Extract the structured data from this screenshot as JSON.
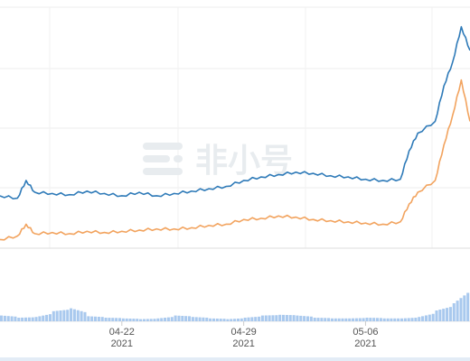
{
  "chart_data": [
    {
      "type": "line",
      "x_range": [
        "2021-04-15",
        "2021-05-12"
      ],
      "series": [
        {
          "color": "#2e7ab8",
          "points": [
            [
              "2021-04-15",
              0.42
            ],
            [
              "2021-04-16",
              0.4
            ],
            [
              "2021-04-16T12:00",
              0.55
            ],
            [
              "2021-04-17",
              0.45
            ],
            [
              "2021-04-18",
              0.44
            ],
            [
              "2021-04-19",
              0.43
            ],
            [
              "2021-04-20",
              0.46
            ],
            [
              "2021-04-21",
              0.44
            ],
            [
              "2021-04-22",
              0.42
            ],
            [
              "2021-04-23",
              0.45
            ],
            [
              "2021-04-24",
              0.42
            ],
            [
              "2021-04-25",
              0.44
            ],
            [
              "2021-04-26",
              0.46
            ],
            [
              "2021-04-27",
              0.48
            ],
            [
              "2021-04-28",
              0.5
            ],
            [
              "2021-04-29",
              0.55
            ],
            [
              "2021-04-30",
              0.58
            ],
            [
              "2021-05-01",
              0.6
            ],
            [
              "2021-05-02",
              0.62
            ],
            [
              "2021-05-03",
              0.61
            ],
            [
              "2021-05-04",
              0.59
            ],
            [
              "2021-05-05",
              0.58
            ],
            [
              "2021-05-06",
              0.56
            ],
            [
              "2021-05-07",
              0.55
            ],
            [
              "2021-05-08",
              0.56
            ],
            [
              "2021-05-08T12:00",
              0.8
            ],
            [
              "2021-05-09",
              0.95
            ],
            [
              "2021-05-10",
              1.05
            ],
            [
              "2021-05-10T12:00",
              1.35
            ],
            [
              "2021-05-11",
              1.55
            ],
            [
              "2021-05-11T12:00",
              1.85
            ],
            [
              "2021-05-12",
              1.65
            ]
          ]
        },
        {
          "color": "#f2a35e",
          "points": [
            [
              "2021-04-15",
              0.05
            ],
            [
              "2021-04-16",
              0.08
            ],
            [
              "2021-04-16T12:00",
              0.18
            ],
            [
              "2021-04-17",
              0.1
            ],
            [
              "2021-04-18",
              0.11
            ],
            [
              "2021-04-19",
              0.1
            ],
            [
              "2021-04-20",
              0.12
            ],
            [
              "2021-04-21",
              0.11
            ],
            [
              "2021-04-22",
              0.12
            ],
            [
              "2021-04-23",
              0.13
            ],
            [
              "2021-04-24",
              0.14
            ],
            [
              "2021-04-25",
              0.14
            ],
            [
              "2021-04-26",
              0.15
            ],
            [
              "2021-04-27",
              0.17
            ],
            [
              "2021-04-28",
              0.18
            ],
            [
              "2021-04-29",
              0.22
            ],
            [
              "2021-04-30",
              0.23
            ],
            [
              "2021-05-01",
              0.25
            ],
            [
              "2021-05-02",
              0.24
            ],
            [
              "2021-05-03",
              0.22
            ],
            [
              "2021-05-04",
              0.21
            ],
            [
              "2021-05-05",
              0.2
            ],
            [
              "2021-05-06",
              0.19
            ],
            [
              "2021-05-07",
              0.18
            ],
            [
              "2021-05-08",
              0.2
            ],
            [
              "2021-05-08T12:00",
              0.35
            ],
            [
              "2021-05-09",
              0.45
            ],
            [
              "2021-05-10",
              0.55
            ],
            [
              "2021-05-10T12:00",
              0.85
            ],
            [
              "2021-05-11",
              1.1
            ],
            [
              "2021-05-11T12:00",
              1.4
            ],
            [
              "2021-05-12",
              1.05
            ]
          ]
        }
      ],
      "x_tick_labels": [
        {
          "x": "2021-04-22",
          "line1": "04-22",
          "line2": "2021"
        },
        {
          "x": "2021-04-29",
          "line1": "04-29",
          "line2": "2021"
        },
        {
          "x": "2021-05-06",
          "line1": "05-06",
          "line2": "2021"
        }
      ],
      "grid": true,
      "watermark": "非小号"
    },
    {
      "type": "bar",
      "color": "#a9c9ee",
      "x": [
        "2021-04-15",
        "2021-04-16",
        "2021-04-17",
        "2021-04-18",
        "2021-04-19",
        "2021-04-20",
        "2021-04-21",
        "2021-04-22",
        "2021-04-23",
        "2021-04-24",
        "2021-04-25",
        "2021-04-26",
        "2021-04-27",
        "2021-04-28",
        "2021-04-29",
        "2021-04-30",
        "2021-05-01",
        "2021-05-02",
        "2021-05-03",
        "2021-05-04",
        "2021-05-05",
        "2021-05-06",
        "2021-05-07",
        "2021-05-08",
        "2021-05-09",
        "2021-05-10",
        "2021-05-11",
        "2021-05-12"
      ],
      "values": [
        8,
        5,
        6,
        14,
        18,
        7,
        5,
        4,
        3,
        4,
        8,
        6,
        4,
        3,
        5,
        8,
        9,
        8,
        5,
        4,
        4,
        5,
        4,
        4,
        6,
        15,
        25,
        55
      ]
    }
  ]
}
